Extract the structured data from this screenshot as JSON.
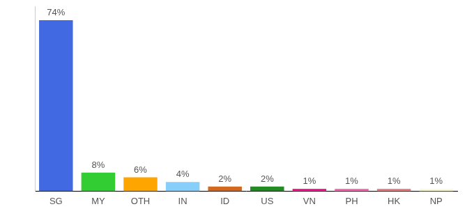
{
  "chart_data": {
    "type": "bar",
    "categories": [
      "SG",
      "MY",
      "OTH",
      "IN",
      "ID",
      "US",
      "VN",
      "PH",
      "HK",
      "NP"
    ],
    "values": [
      74,
      8,
      6,
      4,
      2,
      2,
      1,
      1,
      1,
      1
    ],
    "value_labels": [
      "74%",
      "8%",
      "6%",
      "4%",
      "2%",
      "2%",
      "1%",
      "1%",
      "1%",
      "1%"
    ],
    "colors": [
      "#4169e1",
      "#32cd32",
      "#ffa500",
      "#87cefa",
      "#d2691e",
      "#228b22",
      "#ff1493",
      "#ff69b4",
      "#f08080",
      "#fafad2"
    ],
    "ylim": [
      0,
      80
    ],
    "grid": false,
    "data_labels": true,
    "tick_labels": "x"
  }
}
